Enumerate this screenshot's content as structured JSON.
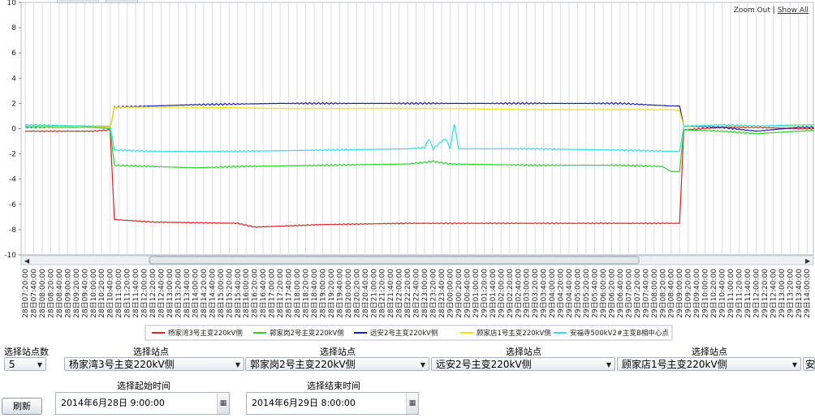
{
  "zoom": {
    "zoom_out": "Zoom Out",
    "separator": "|",
    "show_all": "Show All"
  },
  "controls": {
    "site_count_label": "选择站点数",
    "site_count_value": "5",
    "site_label": "选择站点",
    "sites": [
      "杨家湾3号主变220kV侧",
      "郭家岗2号主变220kV侧",
      "远安2号主变220kV侧",
      "顾家店1号主变220kV侧",
      "安"
    ],
    "start_label": "选择起始时间",
    "start_value": "2014年6月28日 9:00:00",
    "end_label": "选择结束时间",
    "end_value": "2014年6月29日 8:00:00",
    "refresh_label": "刷新"
  },
  "chart_data": {
    "type": "line",
    "ylim": [
      -10,
      10
    ],
    "yticks": [
      -10,
      -8,
      -6,
      -4,
      -2,
      0,
      2,
      4,
      6,
      8,
      10
    ],
    "grid": "vertical only",
    "legend_position": "bottom",
    "x_tick_labels": [
      "28日07:20:00",
      "28日07:40:00",
      "28日08:00:00",
      "28日08:20:00",
      "28日08:40:00",
      "28日09:00:00",
      "28日09:20:00",
      "28日09:40:00",
      "28日10:00:00",
      "28日10:20:00",
      "28日10:40:00",
      "28日11:00:00",
      "28日11:20:00",
      "28日11:40:00",
      "28日12:00:00",
      "28日12:20:00",
      "28日12:40:00",
      "28日13:00:00",
      "28日13:20:00",
      "28日13:40:00",
      "28日14:00:00",
      "28日14:20:00",
      "28日14:40:00",
      "28日15:00:00",
      "28日15:20:00",
      "28日15:40:00",
      "28日16:00:00",
      "28日16:20:00",
      "28日16:40:00",
      "28日17:00:00",
      "28日17:20:00",
      "28日17:40:00",
      "28日18:00:00",
      "28日18:20:00",
      "28日18:40:00",
      "28日19:00:00",
      "28日19:20:00",
      "28日19:40:00",
      "28日20:00:00",
      "28日20:20:00",
      "28日20:40:00",
      "28日21:00:00",
      "28日21:20:00",
      "28日21:40:00",
      "28日22:00:00",
      "28日22:20:00",
      "28日22:40:00",
      "28日23:00:00",
      "28日23:20:00",
      "28日23:40:00",
      "29日00:00:00",
      "29日00:20:00",
      "29日00:40:00",
      "29日01:00:00",
      "29日01:20:00",
      "29日01:40:00",
      "29日02:00:00",
      "29日02:20:00",
      "29日02:40:00",
      "29日03:00:00",
      "29日03:20:00",
      "29日03:40:00",
      "29日04:00:00",
      "29日04:20:00",
      "29日04:40:00",
      "29日05:00:00",
      "29日05:20:00",
      "29日05:40:00",
      "29日06:00:00",
      "29日06:20:00",
      "29日06:40:00",
      "29日07:00:00",
      "29日07:20:00",
      "29日07:40:00",
      "29日08:00:00",
      "29日08:20:00",
      "29日08:40:00",
      "29日09:00:00",
      "29日09:20:00",
      "29日09:40:00",
      "29日10:00:00",
      "29日10:20:00",
      "29日10:40:00",
      "29日11:00:00",
      "29日11:20:00",
      "29日11:40:00",
      "29日12:00:00",
      "29日12:20:00",
      "29日12:40:00",
      "29日13:00:00",
      "29日13:20:00",
      "29日13:40:00",
      "29日14:00:00"
    ],
    "series": [
      {
        "name": "杨家湾3号主变220kV侧",
        "color": "#e32222",
        "points": [
          [
            0,
            -0.2
          ],
          [
            8,
            -0.2
          ],
          [
            10,
            -0.1
          ],
          [
            10.5,
            -7.2
          ],
          [
            15,
            -7.4
          ],
          [
            25,
            -7.5
          ],
          [
            27,
            -7.8
          ],
          [
            35,
            -7.6
          ],
          [
            45,
            -7.5
          ],
          [
            55,
            -7.5
          ],
          [
            65,
            -7.5
          ],
          [
            75,
            -7.5
          ],
          [
            77,
            -7.5
          ],
          [
            77.5,
            -0.1
          ],
          [
            82,
            0.1
          ],
          [
            86,
            0.1
          ],
          [
            91,
            0.0
          ],
          [
            94,
            0.0
          ]
        ]
      },
      {
        "name": "郭家岗2号主变220kV侧",
        "color": "#2bd42b",
        "points": [
          [
            0,
            0.1
          ],
          [
            8,
            0.1
          ],
          [
            10,
            0.0
          ],
          [
            10.5,
            -2.9
          ],
          [
            15,
            -3.0
          ],
          [
            20,
            -3.1
          ],
          [
            25,
            -3.0
          ],
          [
            35,
            -2.9
          ],
          [
            45,
            -2.8
          ],
          [
            48,
            -2.6
          ],
          [
            50,
            -2.8
          ],
          [
            60,
            -2.9
          ],
          [
            70,
            -2.9
          ],
          [
            75,
            -3.0
          ],
          [
            76,
            -3.4
          ],
          [
            77,
            -3.4
          ],
          [
            77.5,
            -0.1
          ],
          [
            82,
            -0.2
          ],
          [
            86,
            -0.4
          ],
          [
            91,
            -0.2
          ],
          [
            94,
            -0.1
          ]
        ]
      },
      {
        "name": "远安2号主变220kV侧",
        "color": "#1c1cb4",
        "points": [
          [
            0,
            0.2
          ],
          [
            8,
            0.2
          ],
          [
            10,
            0.1
          ],
          [
            10.5,
            1.7
          ],
          [
            20,
            1.9
          ],
          [
            30,
            2.0
          ],
          [
            40,
            2.0
          ],
          [
            50,
            2.0
          ],
          [
            60,
            2.0
          ],
          [
            70,
            2.0
          ],
          [
            76,
            1.8
          ],
          [
            77,
            1.8
          ],
          [
            77.5,
            0.2
          ],
          [
            82,
            0.1
          ],
          [
            86,
            -0.2
          ],
          [
            91,
            0.1
          ],
          [
            94,
            0.1
          ]
        ]
      },
      {
        "name": "顾家店1号主变220kV侧",
        "color": "#f2e600",
        "points": [
          [
            0,
            0.2
          ],
          [
            8,
            0.2
          ],
          [
            10,
            0.1
          ],
          [
            10.5,
            1.7
          ],
          [
            20,
            1.7
          ],
          [
            30,
            1.6
          ],
          [
            40,
            1.6
          ],
          [
            50,
            1.6
          ],
          [
            60,
            1.5
          ],
          [
            70,
            1.5
          ],
          [
            76,
            1.5
          ],
          [
            77,
            1.4
          ],
          [
            77.5,
            0.2
          ],
          [
            82,
            0.2
          ],
          [
            86,
            0.2
          ],
          [
            91,
            0.2
          ],
          [
            94,
            0.2
          ]
        ]
      },
      {
        "name": "安福寺500kV2#主变B相中心点",
        "color": "#2ee0e6",
        "points": [
          [
            0,
            0.3
          ],
          [
            8,
            0.2
          ],
          [
            10,
            0.2
          ],
          [
            10.5,
            -1.7
          ],
          [
            15,
            -1.8
          ],
          [
            25,
            -1.8
          ],
          [
            35,
            -1.7
          ],
          [
            45,
            -1.6
          ],
          [
            47,
            -1.5
          ],
          [
            47.5,
            -0.8
          ],
          [
            48,
            -1.6
          ],
          [
            49,
            -1.0
          ],
          [
            49.5,
            -0.8
          ],
          [
            50,
            -1.6
          ],
          [
            50.5,
            0.4
          ],
          [
            51,
            -1.6
          ],
          [
            60,
            -1.6
          ],
          [
            70,
            -1.7
          ],
          [
            76,
            -1.8
          ],
          [
            77,
            -1.8
          ],
          [
            77.5,
            0.2
          ],
          [
            82,
            0.3
          ],
          [
            86,
            0.2
          ],
          [
            91,
            0.3
          ],
          [
            94,
            0.3
          ]
        ]
      }
    ]
  }
}
